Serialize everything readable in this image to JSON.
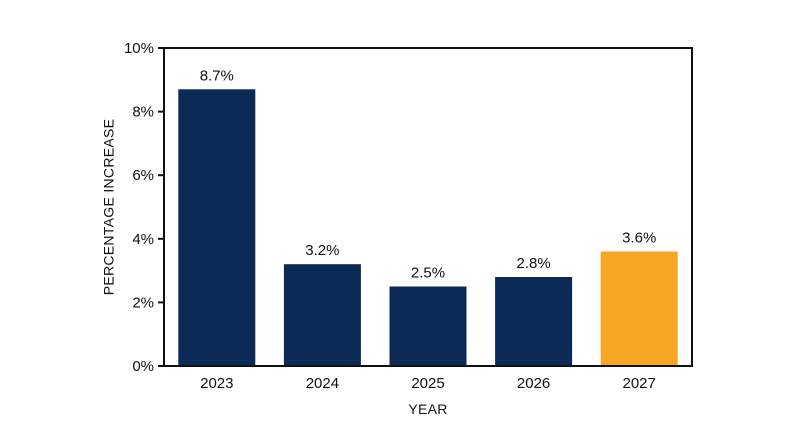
{
  "chart_data": {
    "type": "bar",
    "title": "",
    "xlabel": "YEAR",
    "ylabel": "PERCENTAGE INCREASE",
    "categories": [
      "2023",
      "2024",
      "2025",
      "2026",
      "2027"
    ],
    "values": [
      8.7,
      3.2,
      2.5,
      2.8,
      3.6
    ],
    "data_labels": [
      "8.7%",
      "3.2%",
      "2.5%",
      "2.8%",
      "3.6%"
    ],
    "ylim": [
      0,
      10
    ],
    "yticks": [
      0,
      2,
      4,
      6,
      8,
      10
    ],
    "ytick_labels": [
      "0%",
      "2%",
      "4%",
      "6%",
      "8%",
      "10%"
    ],
    "grid": false,
    "legend": "none",
    "colors": {
      "default_bar": "#0b2a55",
      "highlight_bar": "#f6a623",
      "frame": "#111111"
    },
    "highlight_index": 4
  }
}
